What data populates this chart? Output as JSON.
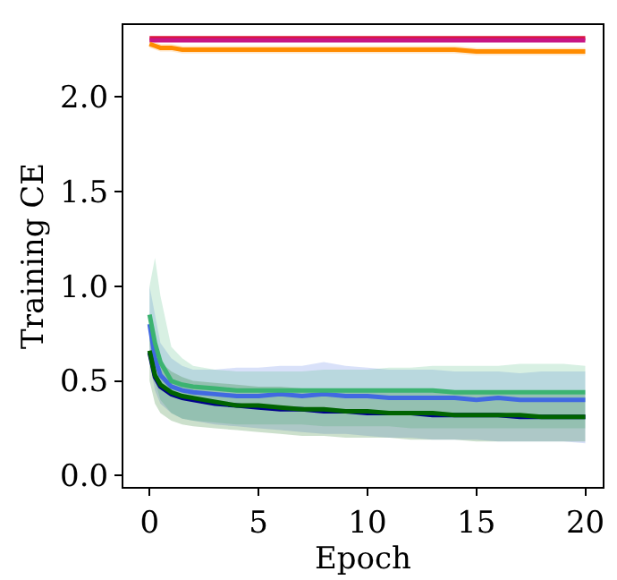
{
  "chart_data": {
    "type": "line",
    "xlabel": "Epoch",
    "ylabel": "Training CE",
    "xlim": [
      -1.2,
      20.8
    ],
    "xticks": [
      0,
      5,
      10,
      15,
      20
    ],
    "ylim": [
      -0.06,
      2.38
    ],
    "yticks": [
      {
        "value": 0,
        "label": "0.0"
      },
      {
        "value": 0.5,
        "label": "0.5"
      },
      {
        "value": 1,
        "label": "1.0"
      },
      {
        "value": 1.5,
        "label": "1.5"
      },
      {
        "value": 2,
        "label": "2.0"
      }
    ],
    "marker": "none",
    "line_style": "solid",
    "x": [
      0,
      0.25,
      0.5,
      1,
      1.5,
      2,
      3,
      4,
      5,
      6,
      7,
      8,
      9,
      10,
      11,
      12,
      13,
      14,
      15,
      16,
      17,
      18,
      19,
      20
    ],
    "series": [
      {
        "color": "#dc143c",
        "values": [
          2.31,
          2.31,
          2.31,
          2.31,
          2.31,
          2.31,
          2.31,
          2.31,
          2.31,
          2.31,
          2.31,
          2.31,
          2.31,
          2.31,
          2.31,
          2.31,
          2.31,
          2.31,
          2.31,
          2.31,
          2.31,
          2.31,
          2.31,
          2.31
        ]
      },
      {
        "color": "#c71585",
        "values": [
          2.3,
          2.3,
          2.3,
          2.3,
          2.3,
          2.3,
          2.3,
          2.3,
          2.3,
          2.3,
          2.3,
          2.3,
          2.3,
          2.3,
          2.3,
          2.3,
          2.3,
          2.3,
          2.3,
          2.3,
          2.3,
          2.3,
          2.3,
          2.3
        ]
      },
      {
        "color": "#ff8c00",
        "values": [
          2.28,
          2.27,
          2.26,
          2.26,
          2.25,
          2.25,
          2.25,
          2.25,
          2.25,
          2.25,
          2.25,
          2.25,
          2.25,
          2.25,
          2.25,
          2.25,
          2.25,
          2.25,
          2.24,
          2.24,
          2.24,
          2.24,
          2.24,
          2.24
        ],
        "lower": [
          2.26,
          2.25,
          2.24,
          2.24,
          2.23,
          2.23,
          2.23,
          2.23,
          2.23,
          2.23,
          2.23,
          2.23,
          2.23,
          2.23,
          2.23,
          2.23,
          2.23,
          2.23,
          2.22,
          2.22,
          2.22,
          2.22,
          2.22,
          2.22
        ],
        "upper": [
          2.3,
          2.29,
          2.28,
          2.28,
          2.27,
          2.27,
          2.27,
          2.27,
          2.27,
          2.27,
          2.27,
          2.27,
          2.27,
          2.27,
          2.27,
          2.27,
          2.27,
          2.27,
          2.26,
          2.26,
          2.26,
          2.26,
          2.26,
          2.26
        ]
      },
      {
        "color": "#4169e1",
        "values": [
          0.8,
          0.62,
          0.53,
          0.47,
          0.45,
          0.44,
          0.43,
          0.42,
          0.42,
          0.43,
          0.42,
          0.43,
          0.42,
          0.42,
          0.41,
          0.41,
          0.41,
          0.41,
          0.4,
          0.41,
          0.4,
          0.4,
          0.4,
          0.4
        ],
        "lower": [
          0.6,
          0.45,
          0.38,
          0.33,
          0.3,
          0.29,
          0.27,
          0.26,
          0.25,
          0.24,
          0.23,
          0.22,
          0.22,
          0.21,
          0.2,
          0.2,
          0.19,
          0.19,
          0.19,
          0.18,
          0.18,
          0.18,
          0.18,
          0.17
        ],
        "upper": [
          1.0,
          0.85,
          0.7,
          0.62,
          0.58,
          0.56,
          0.56,
          0.57,
          0.57,
          0.58,
          0.58,
          0.6,
          0.58,
          0.57,
          0.56,
          0.56,
          0.56,
          0.55,
          0.55,
          0.55,
          0.54,
          0.55,
          0.55,
          0.55
        ]
      },
      {
        "color": "#3cb371",
        "values": [
          0.85,
          0.7,
          0.6,
          0.5,
          0.48,
          0.47,
          0.46,
          0.45,
          0.45,
          0.45,
          0.45,
          0.45,
          0.45,
          0.45,
          0.45,
          0.45,
          0.45,
          0.44,
          0.44,
          0.44,
          0.44,
          0.44,
          0.44,
          0.44
        ],
        "lower": [
          0.7,
          0.5,
          0.4,
          0.33,
          0.3,
          0.29,
          0.28,
          0.27,
          0.27,
          0.27,
          0.27,
          0.26,
          0.26,
          0.26,
          0.26,
          0.25,
          0.25,
          0.25,
          0.25,
          0.25,
          0.25,
          0.25,
          0.25,
          0.25
        ],
        "upper": [
          1.0,
          1.15,
          0.95,
          0.68,
          0.62,
          0.58,
          0.56,
          0.55,
          0.55,
          0.55,
          0.55,
          0.56,
          0.56,
          0.56,
          0.57,
          0.57,
          0.58,
          0.58,
          0.58,
          0.58,
          0.59,
          0.59,
          0.59,
          0.58
        ]
      },
      {
        "color": "#00008b",
        "values": [
          0.65,
          0.52,
          0.47,
          0.43,
          0.41,
          0.4,
          0.38,
          0.37,
          0.36,
          0.35,
          0.35,
          0.34,
          0.34,
          0.33,
          0.33,
          0.33,
          0.32,
          0.32,
          0.32,
          0.32,
          0.31,
          0.31,
          0.31,
          0.31
        ]
      },
      {
        "color": "#006400",
        "values": [
          0.66,
          0.53,
          0.48,
          0.44,
          0.42,
          0.41,
          0.39,
          0.37,
          0.37,
          0.36,
          0.35,
          0.35,
          0.34,
          0.34,
          0.33,
          0.33,
          0.33,
          0.32,
          0.32,
          0.32,
          0.32,
          0.31,
          0.31,
          0.31
        ],
        "lower": [
          0.5,
          0.38,
          0.33,
          0.29,
          0.27,
          0.26,
          0.25,
          0.24,
          0.23,
          0.22,
          0.21,
          0.21,
          0.2,
          0.2,
          0.2,
          0.19,
          0.19,
          0.19,
          0.18,
          0.18,
          0.18,
          0.18,
          0.18,
          0.18
        ],
        "upper": [
          0.82,
          0.68,
          0.6,
          0.55,
          0.52,
          0.5,
          0.49,
          0.48,
          0.47,
          0.47,
          0.46,
          0.46,
          0.45,
          0.45,
          0.45,
          0.44,
          0.44,
          0.44,
          0.44,
          0.43,
          0.43,
          0.43,
          0.43,
          0.43
        ]
      }
    ]
  }
}
